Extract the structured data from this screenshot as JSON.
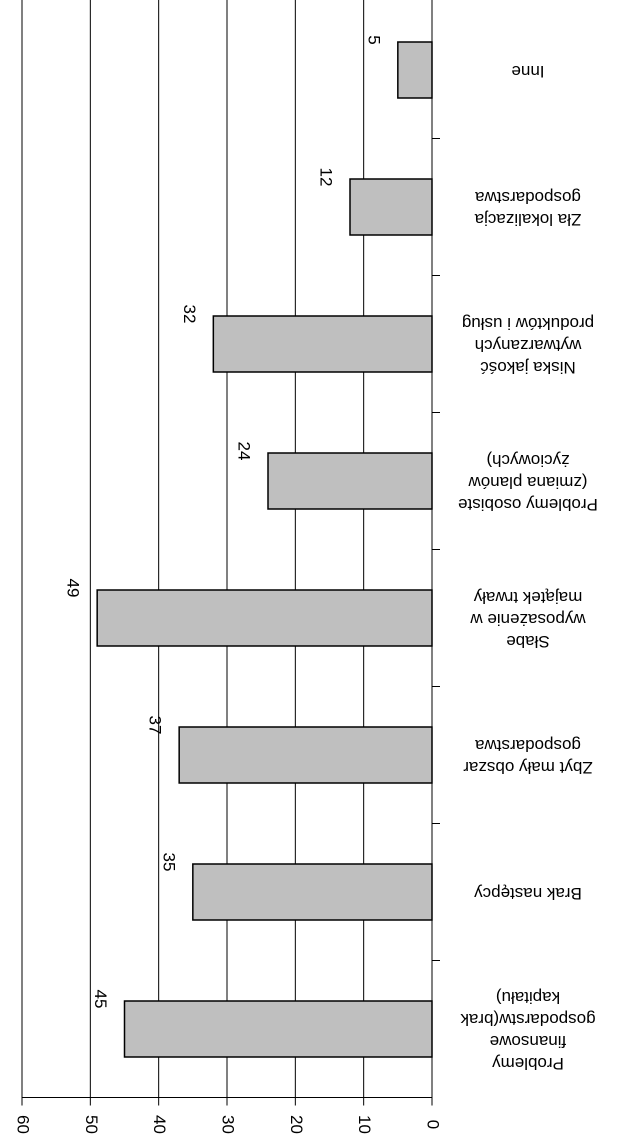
{
  "chart_data": {
    "type": "bar",
    "categories": [
      "Inne",
      "Zła lokalizacja\ngospodarstwa",
      "Niska jakość\nwytwarzanych\nproduktów i usług",
      "Problemy osobiste\n(zmiana planów\nżyciowych)",
      "Słabe\nwyposażenie w\nmajątek trwały",
      "Zbyt mały obszar\ngospodarstwa",
      "Brak następcy",
      "Problemy\nfinansowe\ngospodarstw(brak\nkapitału)"
    ],
    "values": [
      5,
      12,
      32,
      24,
      49,
      37,
      35,
      45
    ],
    "color": "#bfbfbf",
    "ylim": [
      0,
      60
    ],
    "yticks": [
      0,
      10,
      20,
      30,
      40,
      50,
      60
    ],
    "grid": true
  }
}
